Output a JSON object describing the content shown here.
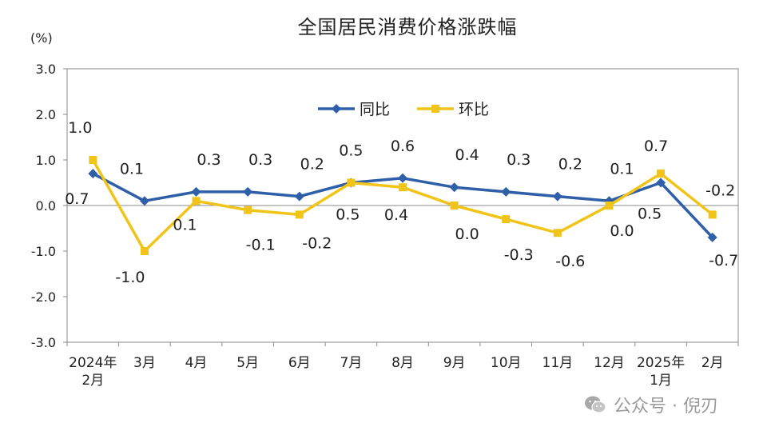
{
  "chart_data": {
    "type": "line",
    "title": "全国居民消费价格涨跌幅",
    "unit_label": "(%)",
    "y_ticks": [
      "3.0",
      "2.0",
      "1.0",
      "0.0",
      "-1.0",
      "-2.0",
      "-3.0"
    ],
    "ylim": [
      -3,
      3
    ],
    "categories": [
      [
        "2024年",
        "2月"
      ],
      [
        "3月"
      ],
      [
        "4月"
      ],
      [
        "5月"
      ],
      [
        "6月"
      ],
      [
        "7月"
      ],
      [
        "8月"
      ],
      [
        "9月"
      ],
      [
        "10月"
      ],
      [
        "11月"
      ],
      [
        "12月"
      ],
      [
        "2025年",
        "1月"
      ],
      [
        "2月"
      ]
    ],
    "legend_position": "top-center",
    "grid": false,
    "series": [
      {
        "name": "同比",
        "color": "#2e5fa8",
        "marker": "diamond",
        "values": [
          0.7,
          0.1,
          0.3,
          0.3,
          0.2,
          0.5,
          0.6,
          0.4,
          0.3,
          0.2,
          0.1,
          0.5,
          -0.7
        ],
        "labels": [
          "0.7",
          "0.1",
          "0.3",
          "0.3",
          "0.2",
          "0.5",
          "0.6",
          "0.4",
          "0.3",
          "0.2",
          "0.1",
          "0.5",
          "-0.7"
        ]
      },
      {
        "name": "环比",
        "color": "#f0c419",
        "marker": "square",
        "values": [
          1.0,
          -1.0,
          0.1,
          -0.1,
          -0.2,
          0.5,
          0.4,
          0.0,
          -0.3,
          -0.6,
          0.0,
          0.7,
          -0.2
        ],
        "labels": [
          "1.0",
          "-1.0",
          "0.1",
          "-0.1",
          "-0.2",
          "0.5",
          "0.4",
          "0.0",
          "-0.3",
          "-0.6",
          "0.0",
          "0.7",
          "-0.2"
        ]
      }
    ]
  },
  "watermark": {
    "text": "公众号 · 倪刃",
    "icon": "wechat-icon",
    "color": "#9a9a9a"
  }
}
